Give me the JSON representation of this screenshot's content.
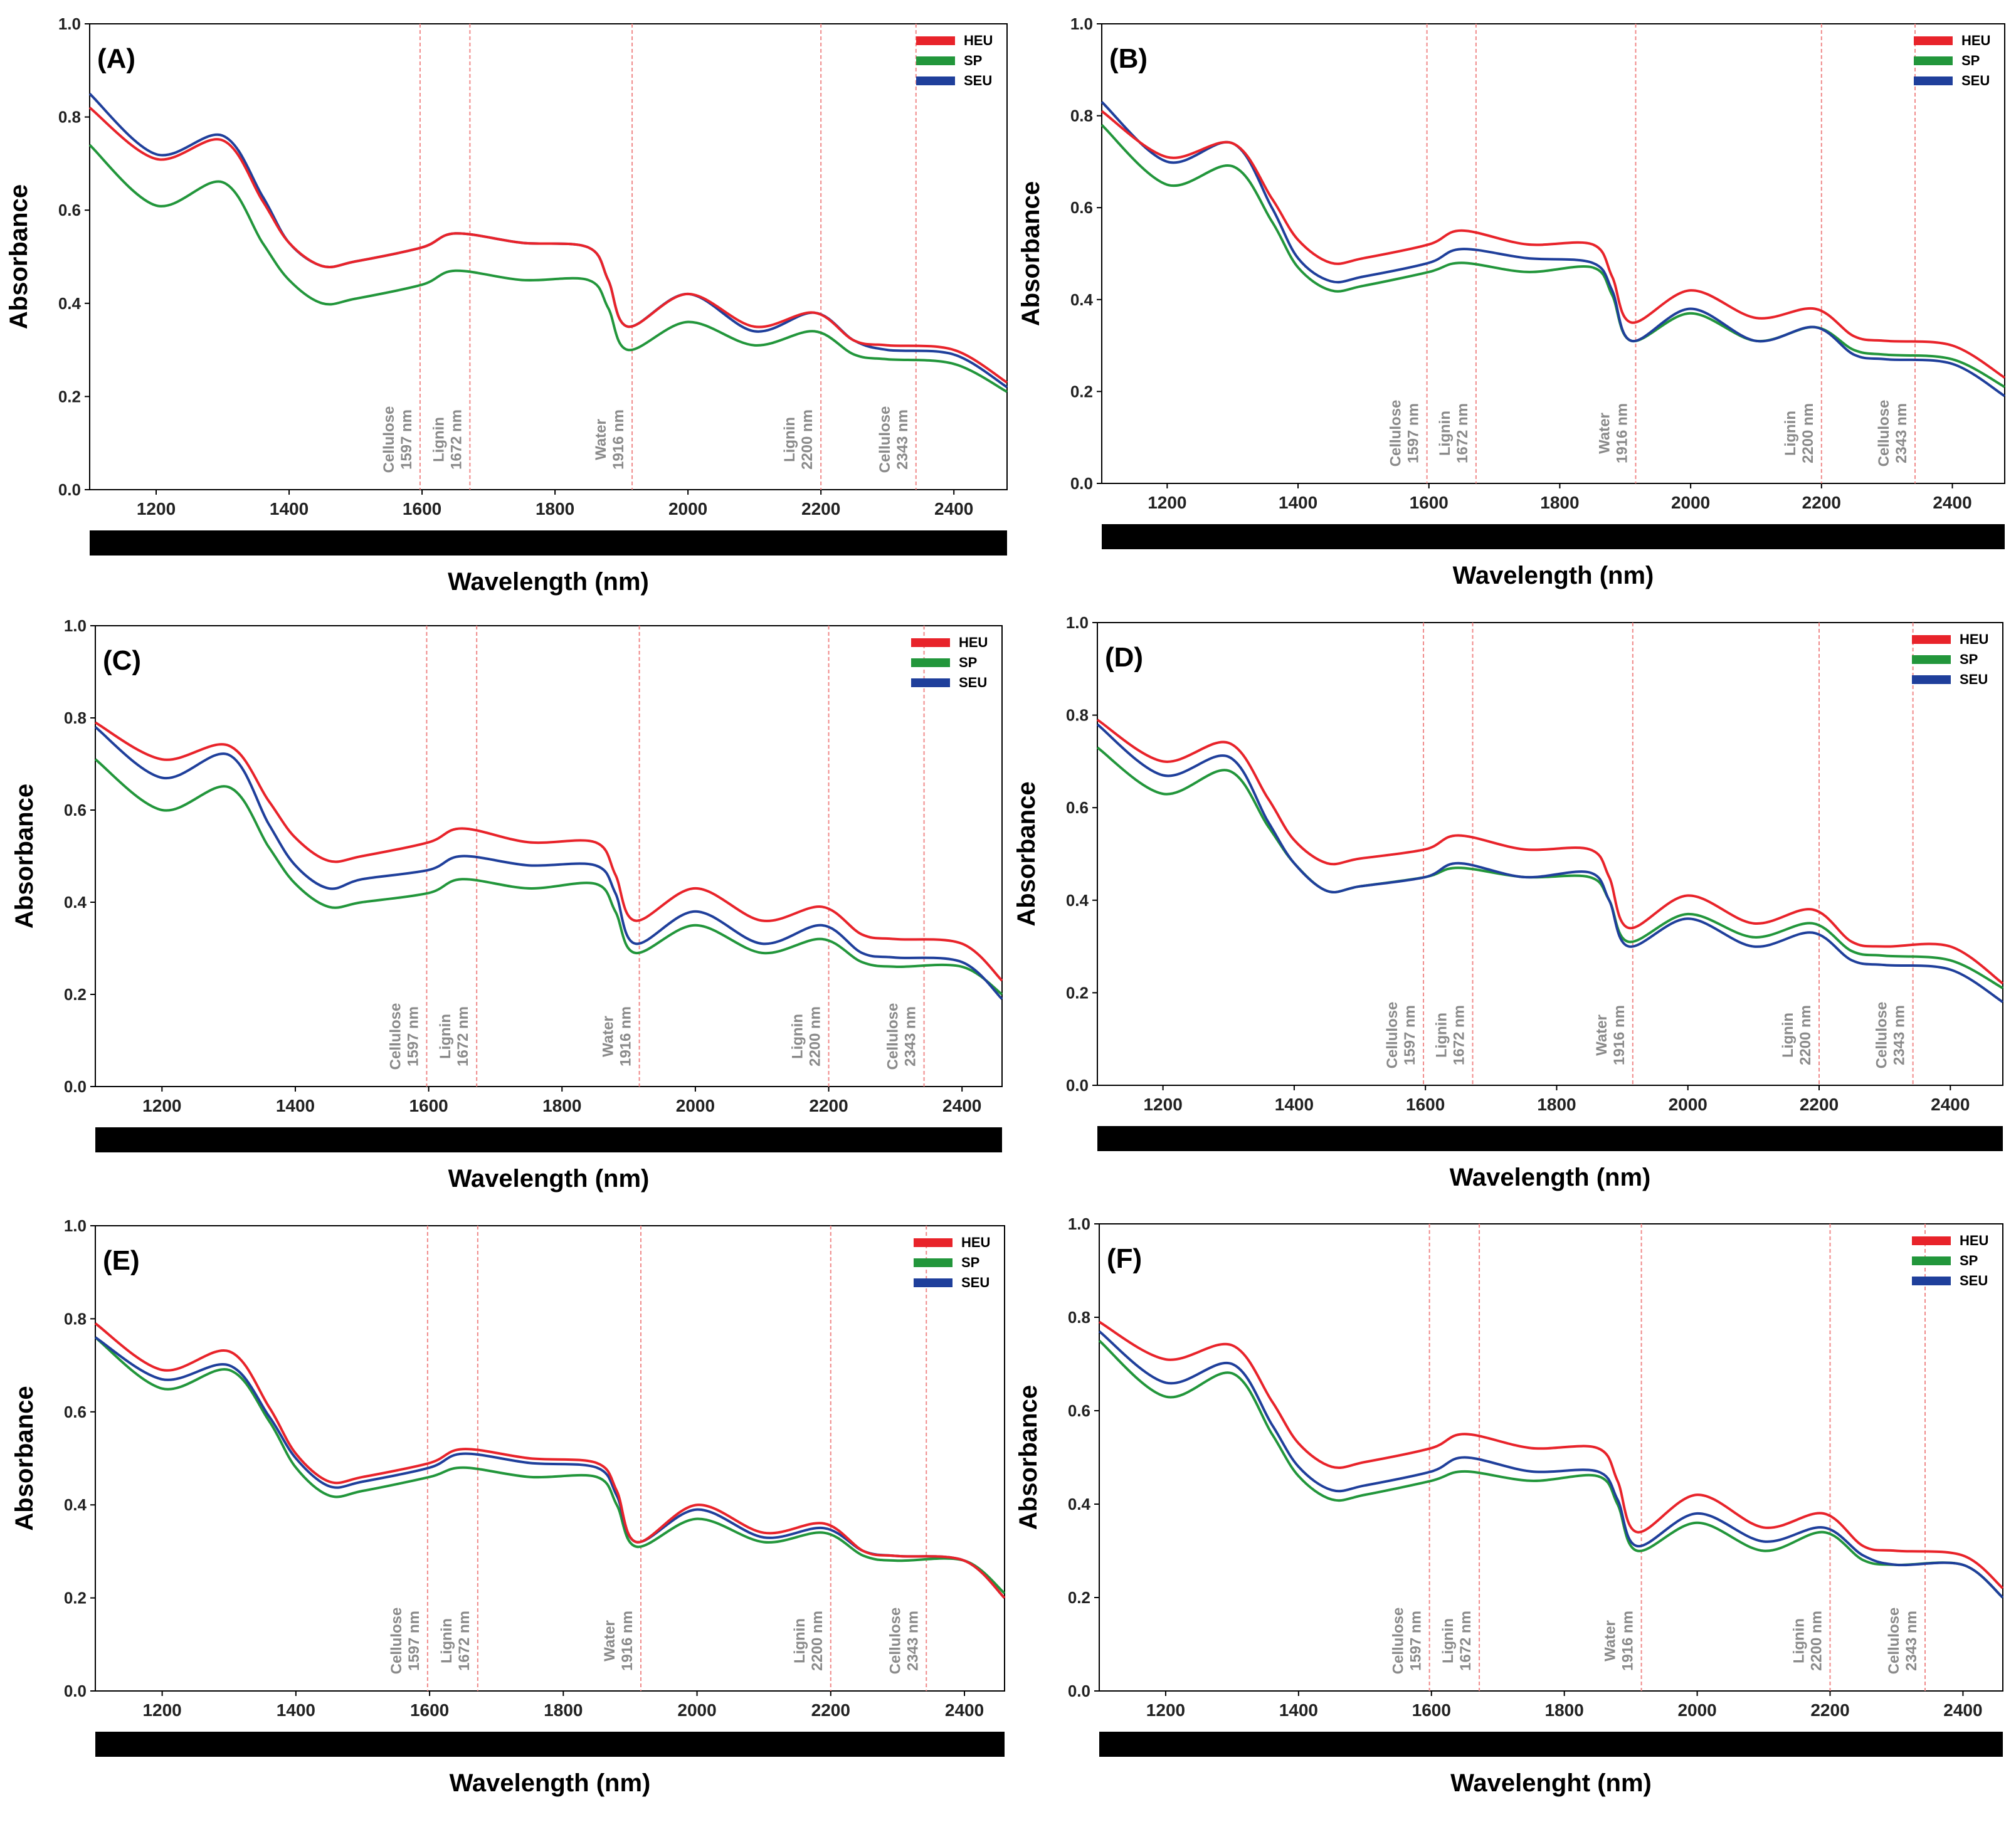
{
  "figure": {
    "panels": [
      {
        "label": "(A)",
        "xlabel": "Wavelength (nm)"
      },
      {
        "label": "(B)",
        "xlabel": "Wavelength (nm)"
      },
      {
        "label": "(C)",
        "xlabel": "Wavelength (nm)"
      },
      {
        "label": "(D)",
        "xlabel": "Wavelength (nm)"
      },
      {
        "label": "(E)",
        "xlabel": "Wavelength (nm)"
      },
      {
        "label": "(F)",
        "xlabel": "Wavelenght (nm)"
      }
    ],
    "ylabel": "Absorbance",
    "legend": [
      {
        "name": "HEU",
        "color": "#e8232a"
      },
      {
        "name": "SP",
        "color": "#22963b"
      },
      {
        "name": "SEU",
        "color": "#1f3f9b"
      }
    ],
    "annotations": [
      {
        "x": 1597,
        "line1": "Cellulose",
        "line2": "1597 nm"
      },
      {
        "x": 1672,
        "line1": "Lignin",
        "line2": "1672 nm"
      },
      {
        "x": 1916,
        "line1": "Water",
        "line2": "1916 nm"
      },
      {
        "x": 2200,
        "line1": "Lignin",
        "line2": "2200 nm"
      },
      {
        "x": 2343,
        "line1": "Cellulose",
        "line2": "2343 nm"
      }
    ]
  },
  "chart_data": [
    {
      "type": "line",
      "panel": "(A)",
      "title": "(A)",
      "xlabel": "Wavelength (nm)",
      "ylabel": "Absorbance",
      "xlim": [
        1100,
        2480
      ],
      "ylim": [
        0,
        1
      ],
      "xticks": [
        "1200",
        "1400",
        "1600",
        "1800",
        "2000",
        "2200",
        "2400"
      ],
      "yticks": [
        "0.0",
        "0.2",
        "0.4",
        "0.6",
        "0.8",
        "1.0"
      ],
      "x": [
        1100,
        1200,
        1300,
        1360,
        1400,
        1450,
        1500,
        1600,
        1650,
        1750,
        1850,
        1880,
        1910,
        2000,
        2100,
        2190,
        2250,
        2300,
        2400,
        2480
      ],
      "series": [
        {
          "name": "HEU",
          "values": [
            0.82,
            0.71,
            0.75,
            0.62,
            0.53,
            0.48,
            0.49,
            0.52,
            0.55,
            0.53,
            0.52,
            0.45,
            0.35,
            0.42,
            0.35,
            0.38,
            0.32,
            0.31,
            0.3,
            0.23
          ]
        },
        {
          "name": "SP",
          "values": [
            0.74,
            0.61,
            0.66,
            0.53,
            0.45,
            0.4,
            0.41,
            0.44,
            0.47,
            0.45,
            0.45,
            0.39,
            0.3,
            0.36,
            0.31,
            0.34,
            0.29,
            0.28,
            0.27,
            0.21
          ]
        },
        {
          "name": "SEU",
          "values": [
            0.85,
            0.72,
            0.76,
            0.63,
            0.53,
            0.48,
            0.49,
            0.52,
            0.55,
            0.53,
            0.52,
            0.45,
            0.35,
            0.42,
            0.34,
            0.38,
            0.32,
            0.3,
            0.29,
            0.22
          ]
        }
      ]
    },
    {
      "type": "line",
      "panel": "(B)",
      "title": "(B)",
      "xlabel": "Wavelength (nm)",
      "ylabel": "Absorbance",
      "xlim": [
        1100,
        2480
      ],
      "ylim": [
        0,
        1
      ],
      "xticks": [
        "1200",
        "1400",
        "1600",
        "1800",
        "2000",
        "2200",
        "2400"
      ],
      "yticks": [
        "0.0",
        "0.2",
        "0.4",
        "0.6",
        "0.8",
        "1.0"
      ],
      "x": [
        1100,
        1200,
        1300,
        1360,
        1400,
        1450,
        1500,
        1600,
        1650,
        1750,
        1850,
        1880,
        1910,
        2000,
        2100,
        2190,
        2250,
        2300,
        2400,
        2480
      ],
      "series": [
        {
          "name": "HEU",
          "values": [
            0.81,
            0.71,
            0.74,
            0.62,
            0.53,
            0.48,
            0.49,
            0.52,
            0.55,
            0.52,
            0.52,
            0.45,
            0.35,
            0.42,
            0.36,
            0.38,
            0.32,
            0.31,
            0.3,
            0.23
          ]
        },
        {
          "name": "SP",
          "values": [
            0.78,
            0.65,
            0.69,
            0.57,
            0.47,
            0.42,
            0.43,
            0.46,
            0.48,
            0.46,
            0.47,
            0.41,
            0.31,
            0.37,
            0.31,
            0.34,
            0.29,
            0.28,
            0.27,
            0.21
          ]
        },
        {
          "name": "SEU",
          "values": [
            0.83,
            0.7,
            0.74,
            0.6,
            0.49,
            0.44,
            0.45,
            0.48,
            0.51,
            0.49,
            0.48,
            0.42,
            0.31,
            0.38,
            0.31,
            0.34,
            0.28,
            0.27,
            0.26,
            0.19
          ]
        }
      ]
    },
    {
      "type": "line",
      "panel": "(C)",
      "title": "(C)",
      "xlabel": "Wavelength (nm)",
      "ylabel": "Absorbance",
      "xlim": [
        1100,
        2460
      ],
      "ylim": [
        0,
        1
      ],
      "xticks": [
        "1200",
        "1400",
        "1600",
        "1800",
        "2000",
        "2200",
        "2400"
      ],
      "yticks": [
        "0.0",
        "0.2",
        "0.4",
        "0.6",
        "0.8",
        "1.0"
      ],
      "x": [
        1100,
        1200,
        1300,
        1360,
        1400,
        1450,
        1500,
        1600,
        1650,
        1750,
        1850,
        1880,
        1910,
        2000,
        2100,
        2190,
        2250,
        2300,
        2400,
        2460
      ],
      "series": [
        {
          "name": "HEU",
          "values": [
            0.79,
            0.71,
            0.74,
            0.62,
            0.54,
            0.49,
            0.5,
            0.53,
            0.56,
            0.53,
            0.53,
            0.46,
            0.36,
            0.43,
            0.36,
            0.39,
            0.33,
            0.32,
            0.31,
            0.23
          ]
        },
        {
          "name": "SP",
          "values": [
            0.71,
            0.6,
            0.65,
            0.52,
            0.44,
            0.39,
            0.4,
            0.42,
            0.45,
            0.43,
            0.44,
            0.38,
            0.29,
            0.35,
            0.29,
            0.32,
            0.27,
            0.26,
            0.26,
            0.2
          ]
        },
        {
          "name": "SEU",
          "values": [
            0.78,
            0.67,
            0.72,
            0.57,
            0.48,
            0.43,
            0.45,
            0.47,
            0.5,
            0.48,
            0.48,
            0.42,
            0.31,
            0.38,
            0.31,
            0.35,
            0.29,
            0.28,
            0.27,
            0.19
          ]
        }
      ]
    },
    {
      "type": "line",
      "panel": "(D)",
      "title": "(D)",
      "xlabel": "Wavelength (nm)",
      "ylabel": "Absorbance",
      "xlim": [
        1100,
        2480
      ],
      "ylim": [
        0,
        1
      ],
      "xticks": [
        "1200",
        "1400",
        "1600",
        "1800",
        "2000",
        "2200",
        "2400"
      ],
      "yticks": [
        "0.0",
        "0.2",
        "0.4",
        "0.6",
        "0.8",
        "1.0"
      ],
      "x": [
        1100,
        1200,
        1300,
        1360,
        1400,
        1450,
        1500,
        1600,
        1650,
        1750,
        1850,
        1880,
        1910,
        2000,
        2100,
        2190,
        2250,
        2300,
        2400,
        2480
      ],
      "series": [
        {
          "name": "HEU",
          "values": [
            0.79,
            0.7,
            0.74,
            0.62,
            0.53,
            0.48,
            0.49,
            0.51,
            0.54,
            0.51,
            0.51,
            0.45,
            0.34,
            0.41,
            0.35,
            0.38,
            0.31,
            0.3,
            0.3,
            0.22
          ]
        },
        {
          "name": "SP",
          "values": [
            0.73,
            0.63,
            0.68,
            0.56,
            0.48,
            0.42,
            0.43,
            0.45,
            0.47,
            0.45,
            0.45,
            0.4,
            0.31,
            0.37,
            0.32,
            0.35,
            0.29,
            0.28,
            0.27,
            0.21
          ]
        },
        {
          "name": "SEU",
          "values": [
            0.78,
            0.67,
            0.71,
            0.57,
            0.48,
            0.42,
            0.43,
            0.45,
            0.48,
            0.45,
            0.46,
            0.4,
            0.3,
            0.36,
            0.3,
            0.33,
            0.27,
            0.26,
            0.25,
            0.18
          ]
        }
      ]
    },
    {
      "type": "line",
      "panel": "(E)",
      "title": "(E)",
      "xlabel": "Wavelength (nm)",
      "ylabel": "Absorbance",
      "xlim": [
        1100,
        2460
      ],
      "ylim": [
        0,
        1
      ],
      "xticks": [
        "1200",
        "1400",
        "1600",
        "1800",
        "2000",
        "2200",
        "2400"
      ],
      "yticks": [
        "0.0",
        "0.2",
        "0.4",
        "0.6",
        "0.8",
        "1.0"
      ],
      "x": [
        1100,
        1200,
        1300,
        1360,
        1400,
        1450,
        1500,
        1600,
        1650,
        1750,
        1850,
        1880,
        1910,
        2000,
        2100,
        2190,
        2250,
        2300,
        2400,
        2460
      ],
      "series": [
        {
          "name": "HEU",
          "values": [
            0.79,
            0.69,
            0.73,
            0.61,
            0.51,
            0.45,
            0.46,
            0.49,
            0.52,
            0.5,
            0.49,
            0.43,
            0.32,
            0.4,
            0.34,
            0.36,
            0.3,
            0.29,
            0.28,
            0.2
          ]
        },
        {
          "name": "SP",
          "values": [
            0.76,
            0.65,
            0.69,
            0.58,
            0.48,
            0.42,
            0.43,
            0.46,
            0.48,
            0.46,
            0.46,
            0.4,
            0.31,
            0.37,
            0.32,
            0.34,
            0.29,
            0.28,
            0.28,
            0.21
          ]
        },
        {
          "name": "SEU",
          "values": [
            0.76,
            0.67,
            0.7,
            0.59,
            0.5,
            0.44,
            0.45,
            0.48,
            0.51,
            0.49,
            0.48,
            0.42,
            0.32,
            0.39,
            0.33,
            0.35,
            0.3,
            0.29,
            0.28,
            0.2
          ]
        }
      ]
    },
    {
      "type": "line",
      "panel": "(F)",
      "title": "(F)",
      "xlabel": "Wavelenght (nm)",
      "ylabel": "Absorbance",
      "xlim": [
        1100,
        2460
      ],
      "ylim": [
        0,
        1
      ],
      "xticks": [
        "1200",
        "1400",
        "1600",
        "1800",
        "2000",
        "2200",
        "2400"
      ],
      "yticks": [
        "0.0",
        "0.2",
        "0.4",
        "0.6",
        "0.8",
        "1.0"
      ],
      "x": [
        1100,
        1200,
        1300,
        1360,
        1400,
        1450,
        1500,
        1600,
        1650,
        1750,
        1850,
        1880,
        1910,
        2000,
        2100,
        2190,
        2250,
        2300,
        2400,
        2460
      ],
      "series": [
        {
          "name": "HEU",
          "values": [
            0.79,
            0.71,
            0.74,
            0.62,
            0.53,
            0.48,
            0.49,
            0.52,
            0.55,
            0.52,
            0.52,
            0.45,
            0.34,
            0.42,
            0.35,
            0.38,
            0.31,
            0.3,
            0.29,
            0.22
          ]
        },
        {
          "name": "SP",
          "values": [
            0.75,
            0.63,
            0.68,
            0.55,
            0.46,
            0.41,
            0.42,
            0.45,
            0.47,
            0.45,
            0.46,
            0.4,
            0.3,
            0.36,
            0.3,
            0.34,
            0.28,
            0.27,
            0.27,
            0.2
          ]
        },
        {
          "name": "SEU",
          "values": [
            0.77,
            0.66,
            0.7,
            0.57,
            0.48,
            0.43,
            0.44,
            0.47,
            0.5,
            0.47,
            0.47,
            0.41,
            0.31,
            0.38,
            0.32,
            0.35,
            0.29,
            0.27,
            0.27,
            0.2
          ]
        }
      ]
    }
  ]
}
